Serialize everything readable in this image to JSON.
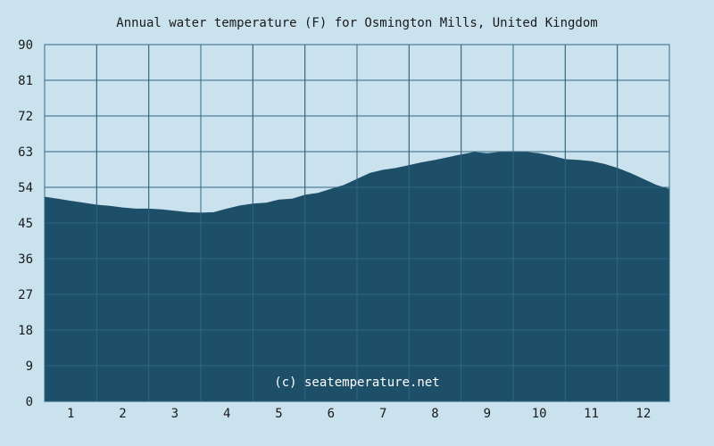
{
  "chart_data": {
    "type": "area",
    "title": "Annual water temperature (F) for Osmington Mills, United Kingdom",
    "watermark": "(c) seatemperature.net",
    "xlabel": "",
    "ylabel": "",
    "ylim": [
      0,
      90
    ],
    "yticks": [
      "0",
      "9",
      "18",
      "27",
      "36",
      "45",
      "54",
      "63",
      "72",
      "81",
      "90"
    ],
    "xticks": [
      "1",
      "2",
      "3",
      "4",
      "5",
      "6",
      "7",
      "8",
      "9",
      "10",
      "11",
      "12"
    ],
    "grid": true,
    "colors": {
      "background": "#c9e2ee",
      "fill": "#1e4f68",
      "grid": "#2f5f78"
    },
    "series": [
      {
        "x": [
          0.0,
          0.25,
          0.5,
          0.75,
          1.0,
          1.25,
          1.5,
          1.75,
          2.0,
          2.25,
          2.5,
          2.75,
          3.0,
          3.25,
          3.5,
          3.75,
          4.0,
          4.25,
          4.5,
          4.75,
          5.0,
          5.25,
          5.5,
          5.75,
          6.0,
          6.25,
          6.5,
          6.75,
          7.0,
          7.25,
          7.5,
          7.75,
          8.0,
          8.25,
          8.5,
          8.75,
          9.0,
          9.25,
          9.5,
          9.75,
          10.0,
          10.25,
          10.5,
          10.75,
          11.0,
          11.25,
          11.5,
          11.75,
          12.0
        ],
        "values": [
          51.5,
          51.0,
          50.5,
          50.0,
          49.5,
          49.2,
          48.8,
          48.5,
          48.5,
          48.3,
          48.0,
          47.6,
          47.5,
          47.6,
          48.5,
          49.3,
          49.8,
          50.0,
          50.8,
          51.0,
          52.0,
          52.5,
          53.5,
          54.5,
          56.0,
          57.5,
          58.3,
          58.8,
          59.5,
          60.2,
          60.8,
          61.5,
          62.2,
          62.8,
          62.5,
          62.8,
          63.0,
          62.8,
          62.5,
          61.8,
          61.0,
          60.8,
          60.5,
          59.8,
          58.8,
          57.5,
          56.0,
          54.5,
          53.5
        ]
      }
    ]
  }
}
